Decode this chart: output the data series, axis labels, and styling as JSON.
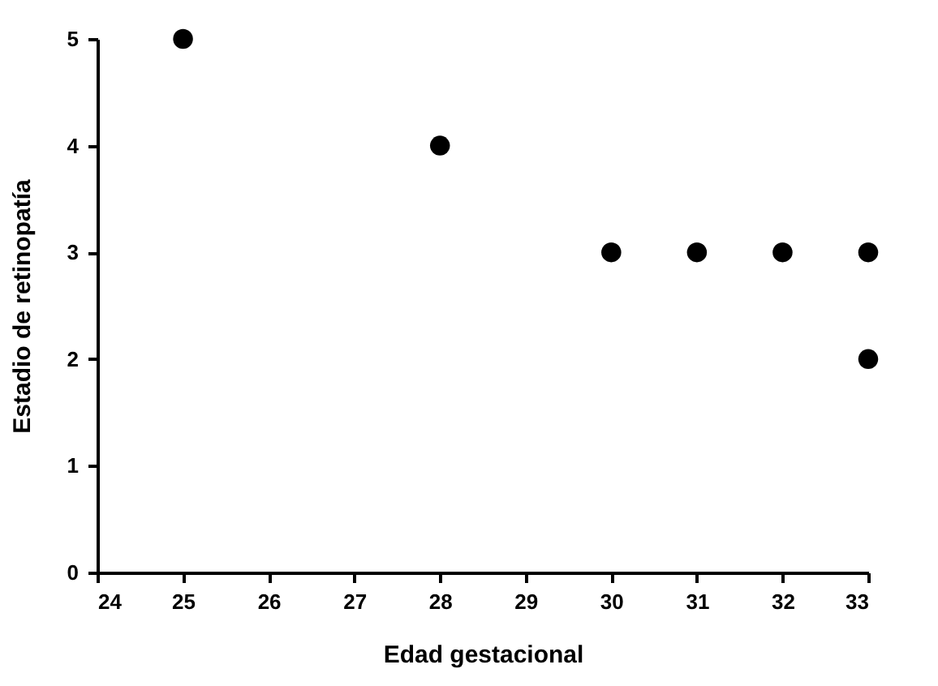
{
  "chart_data": {
    "type": "scatter",
    "xlabel": "Edad gestacional",
    "ylabel": "Estadio de retinopatía",
    "x": [
      25,
      28,
      30,
      31,
      32,
      33,
      33
    ],
    "values": [
      5,
      4,
      3,
      3,
      3,
      3,
      2
    ],
    "color": "#000000",
    "marker": "circle",
    "xlim": [
      24,
      33
    ],
    "xticks": [
      24,
      25,
      26,
      27,
      28,
      29,
      30,
      31,
      32,
      33
    ],
    "ylim": [
      0,
      5
    ],
    "yticks": [
      0,
      1,
      2,
      3,
      4,
      5
    ],
    "grid": false
  }
}
